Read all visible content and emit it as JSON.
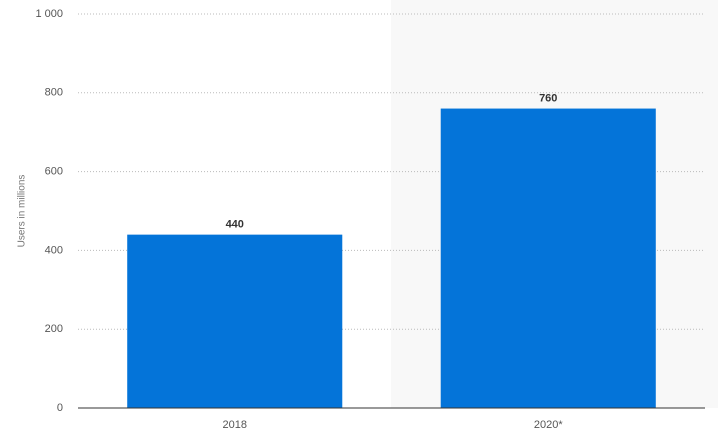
{
  "chart_data": {
    "type": "bar",
    "y_label": "Users in millions",
    "categories": [
      "2018",
      "2020*"
    ],
    "values": [
      440,
      760
    ],
    "color": "#0474d9",
    "ylim": [
      0,
      1000
    ],
    "yticks": [
      0,
      200,
      400,
      600,
      800,
      {
        "value": 1000,
        "label": "1 000"
      }
    ],
    "grid": true
  }
}
